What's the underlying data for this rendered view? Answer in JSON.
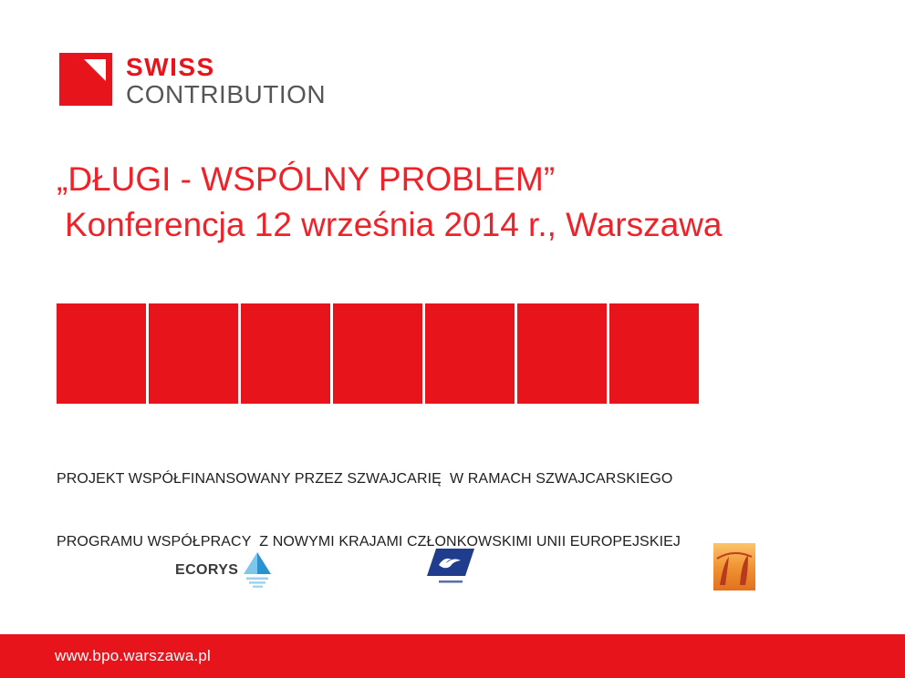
{
  "logo": {
    "line1": "SWISS",
    "line2": "CONTRIBUTION"
  },
  "title": {
    "line1": "„DŁUGI - WSPÓLNY PROBLEM”",
    "line2": "Konferencja 12 września 2014 r., Warszawa"
  },
  "banner": {
    "segments": 7
  },
  "disclaimer": {
    "line1": "PROJEKT WSPÓŁFINANSOWANY PRZEZ SZWAJCARIĘ  W RAMACH SZWAJCARSKIEGO",
    "line2": "PROGRAMU WSPÓŁPRACY  Z NOWYMI KRAJAMI CZŁONKOWSKIMI UNII EUROPEJSKIEJ"
  },
  "partners": {
    "ecorys_label": "ECORYS",
    "ecorys_icon": "blue-triangle-reflection-icon",
    "middle_icon": "navy-flag-seagull-icon",
    "right_icon": "orange-abstract-painting-icon"
  },
  "footer": {
    "url": "www.bpo.warszawa.pl"
  },
  "colors": {
    "red": "#e8141c",
    "title_red": "#ef2229",
    "text_dark": "#1f1f1f",
    "logo_gray": "#565659",
    "ecorys_blue": "#2a93cf",
    "flag_navy": "#1f3d8c",
    "orange": "#f09433"
  }
}
